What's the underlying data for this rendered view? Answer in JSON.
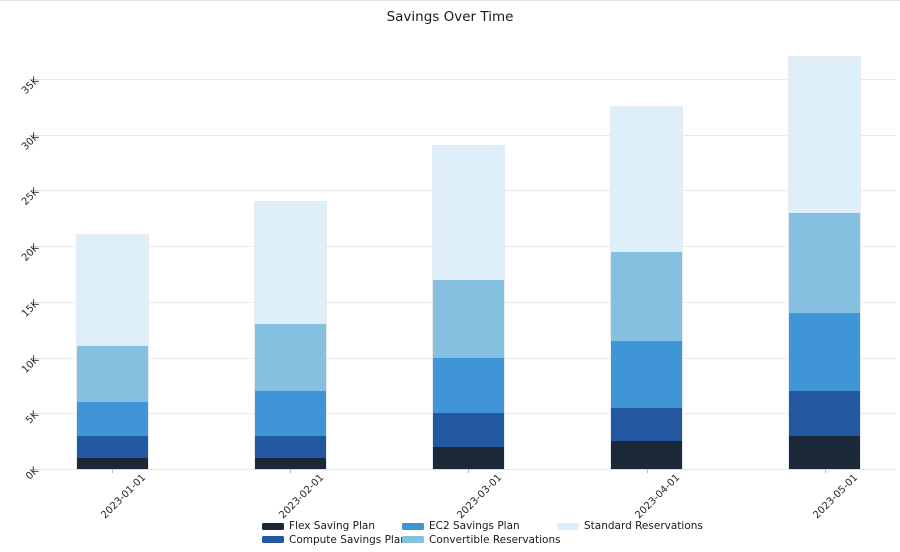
{
  "chart_data": {
    "type": "bar",
    "stacked": true,
    "title": "Savings Over Time",
    "xlabel": "",
    "ylabel": "",
    "categories": [
      "2023-01-01",
      "2023-02-01",
      "2023-03-01",
      "2023-04-01",
      "2023-05-01"
    ],
    "series": [
      {
        "name": "Flex Saving Plan",
        "color": "#1b2838",
        "values": [
          1000,
          1000,
          2000,
          2500,
          3000
        ]
      },
      {
        "name": "Compute Savings Plan",
        "color": "#22589f",
        "values": [
          2000,
          2000,
          3000,
          3000,
          4000
        ]
      },
      {
        "name": "EC2 Savings Plan",
        "color": "#3f95d5",
        "values": [
          3000,
          4000,
          5000,
          6000,
          7000
        ]
      },
      {
        "name": "Convertible Reservations",
        "color": "#86c0e0",
        "values": [
          5000,
          6000,
          7000,
          8000,
          9000
        ]
      },
      {
        "name": "Standard Reservations",
        "color": "#deeffa",
        "values": [
          10000,
          11000,
          12000,
          13000,
          14000
        ]
      }
    ],
    "stack_totals": [
      21000,
      24000,
      29000,
      32500,
      37000
    ],
    "yticks": {
      "values": [
        0,
        5000,
        10000,
        15000,
        20000,
        25000,
        30000,
        35000
      ],
      "labels": [
        "0K",
        "5K",
        "10K",
        "15K",
        "20K",
        "25K",
        "30K",
        "35K"
      ]
    },
    "ylim": [
      0,
      38000
    ],
    "grid": {
      "axis": "y",
      "style": "dotted"
    },
    "legend": {
      "position": "bottom",
      "ncol": 3
    }
  }
}
